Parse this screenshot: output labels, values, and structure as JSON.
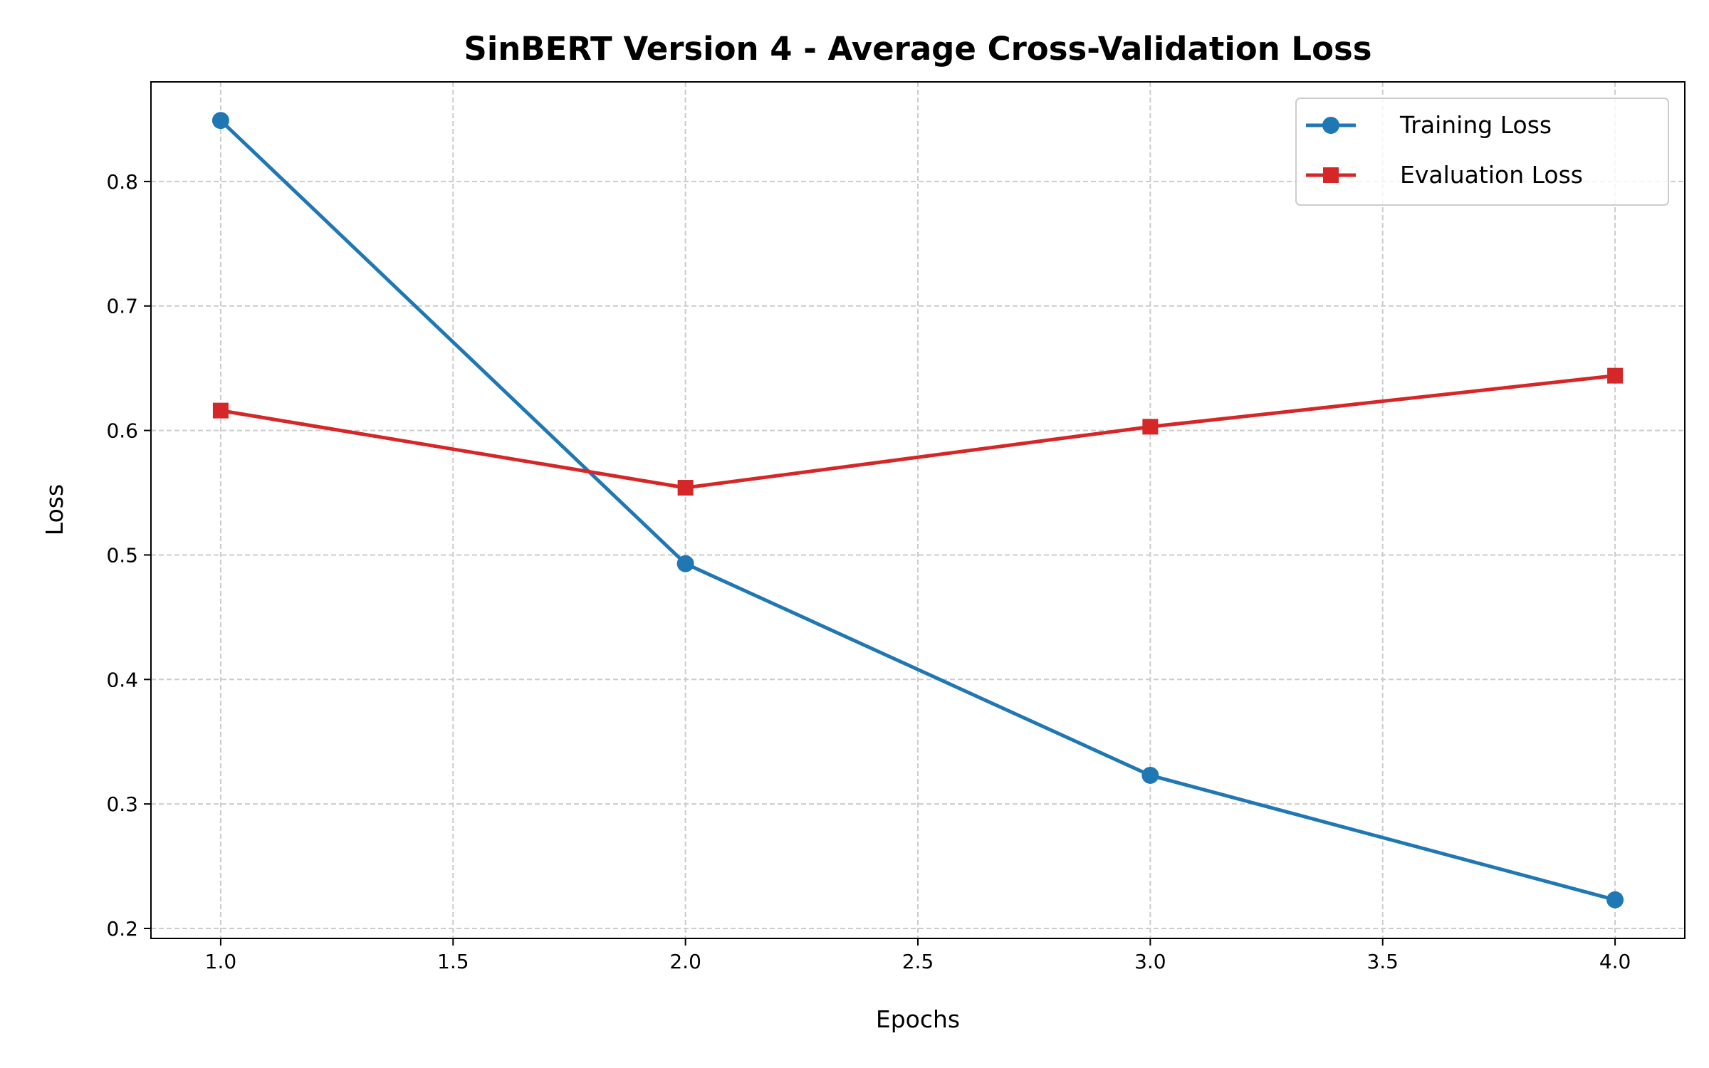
{
  "chart_data": {
    "type": "line",
    "title": "SinBERT Version 4 - Average Cross-Validation Loss",
    "xlabel": "Epochs",
    "ylabel": "Loss",
    "xlim": [
      0.85,
      4.15
    ],
    "ylim": [
      0.192,
      0.88
    ],
    "xticks": [
      "1.0",
      "1.5",
      "2.0",
      "2.5",
      "3.0",
      "3.5",
      "4.0"
    ],
    "yticks": [
      "0.2",
      "0.3",
      "0.4",
      "0.5",
      "0.6",
      "0.7",
      "0.8"
    ],
    "grid": true,
    "legend_position": "top-right",
    "x": [
      1,
      2,
      3,
      4
    ],
    "series": [
      {
        "name": "Training Loss",
        "values": [
          0.849,
          0.493,
          0.323,
          0.223
        ],
        "color": "#1f77b4",
        "marker": "circle"
      },
      {
        "name": "Evaluation Loss",
        "values": [
          0.616,
          0.554,
          0.603,
          0.644
        ],
        "color": "#d62728",
        "marker": "square"
      }
    ]
  }
}
